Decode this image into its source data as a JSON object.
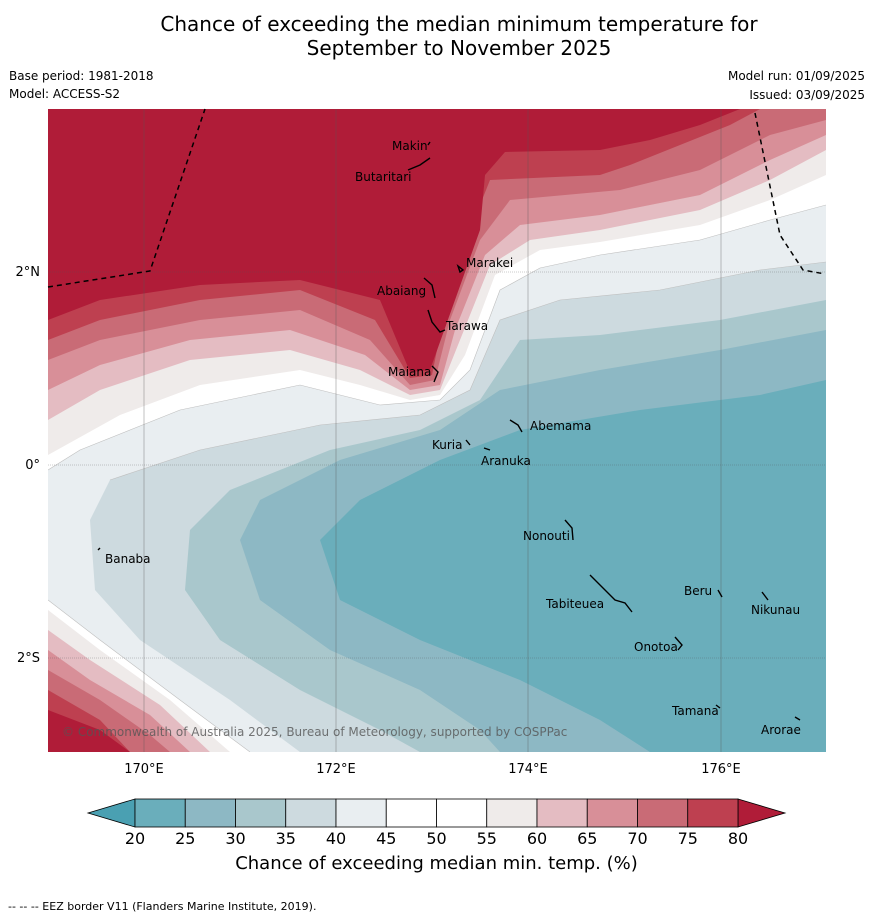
{
  "title_line1": "Chance of exceeding the median minimum temperature for",
  "title_line2": "September to November 2025",
  "base_period": "Base period: 1981-2018",
  "model": "Model: ACCESS-S2",
  "model_run": "Model run: 01/09/2025",
  "issued": "Issued: 03/09/2025",
  "copyright": "© Commonwealth of Australia 2025, Bureau of Meteorology, supported by COSPPac",
  "lon_ticks": [
    "170°E",
    "172°E",
    "174°E",
    "176°E"
  ],
  "lat_ticks": [
    "2°N",
    "0°",
    "2°S"
  ],
  "places": [
    {
      "id": "makin",
      "name": "Makin"
    },
    {
      "id": "butaritari",
      "name": "Butaritari"
    },
    {
      "id": "marakei",
      "name": "Marakei"
    },
    {
      "id": "abaiang",
      "name": "Abaiang"
    },
    {
      "id": "tarawa",
      "name": "Tarawa"
    },
    {
      "id": "maiana",
      "name": "Maiana"
    },
    {
      "id": "abemama",
      "name": "Abemama"
    },
    {
      "id": "kuria",
      "name": "Kuria"
    },
    {
      "id": "aranuka",
      "name": "Aranuka"
    },
    {
      "id": "banaba",
      "name": "Banaba"
    },
    {
      "id": "nonouti",
      "name": "Nonouti"
    },
    {
      "id": "tabiteuea",
      "name": "Tabiteuea"
    },
    {
      "id": "beru",
      "name": "Beru"
    },
    {
      "id": "nikunau",
      "name": "Nikunau"
    },
    {
      "id": "onotoa",
      "name": "Onotoa"
    },
    {
      "id": "tamana",
      "name": "Tamana"
    },
    {
      "id": "arorae",
      "name": "Arorae"
    }
  ],
  "colorbar": {
    "ticks": [
      "20",
      "25",
      "30",
      "35",
      "40",
      "45",
      "50",
      "55",
      "60",
      "65",
      "70",
      "75",
      "80"
    ],
    "colors": [
      "#6aaebb",
      "#8db8c4",
      "#a9c7cc",
      "#cddadf",
      "#e9eef1",
      "#ffffff",
      "#ffffff",
      "#efebea",
      "#e4bcc2",
      "#d88f98",
      "#c96b76",
      "#be4050"
    ],
    "low_color": "#4aa0b2",
    "high_color": "#b01c38",
    "label": "Chance of exceeding median min. temp. (%)"
  },
  "footer": "-- -- -- EEZ border V11 (Flanders Marine Institute, 2019)."
}
